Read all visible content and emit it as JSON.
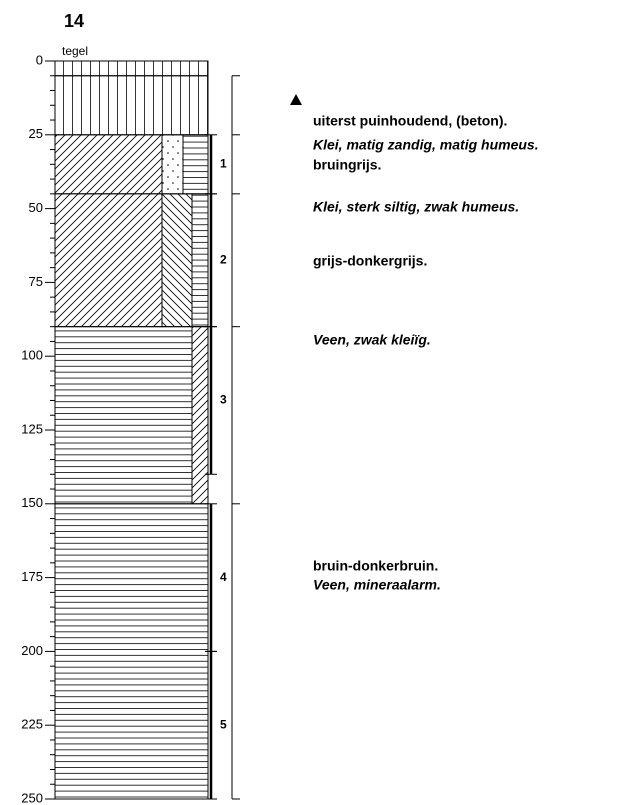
{
  "title": "14",
  "surface_label": "tegel",
  "depth_axis": {
    "ylim": [
      0,
      250
    ],
    "yticks": [
      0,
      25,
      50,
      75,
      100,
      125,
      150,
      175,
      200,
      225,
      250
    ]
  },
  "layers": [
    {
      "top": 0,
      "bottom": 5,
      "patterns": [
        "vertical"
      ]
    },
    {
      "top": 5,
      "bottom": 25,
      "patterns": [
        "vertical"
      ]
    },
    {
      "top": 25,
      "bottom": 45,
      "patterns": [
        "diag",
        "dots",
        "horizontal"
      ]
    },
    {
      "top": 45,
      "bottom": 90,
      "patterns": [
        "diag",
        "backdiag",
        "horizontal"
      ]
    },
    {
      "top": 90,
      "bottom": 150,
      "patterns": [
        "horizontal",
        "diag"
      ]
    },
    {
      "top": 150,
      "bottom": 250,
      "patterns": [
        "horizontal"
      ]
    }
  ],
  "samples": [
    {
      "label": "1",
      "top": 25,
      "bottom": 45
    },
    {
      "label": "2",
      "top": 45,
      "bottom": 90
    },
    {
      "label": "3",
      "top": 90,
      "bottom": 140
    },
    {
      "label": "4",
      "top": 150,
      "bottom": 200
    },
    {
      "label": "5",
      "top": 200,
      "bottom": 250
    }
  ],
  "description_boundaries": [
    5,
    25,
    45,
    90,
    150,
    250
  ],
  "descriptions": [
    {
      "text": "uiterst puinhoudend, (beton).",
      "italic": false
    },
    {
      "text": "Klei, matig zandig, matig humeus.",
      "italic": true
    },
    {
      "text": "bruingrijs.",
      "italic": false
    },
    {
      "text": "Klei, sterk siltig, zwak humeus.",
      "italic": true
    },
    {
      "text": "grijs-donkergrijs.",
      "italic": false
    },
    {
      "text": "Veen, zwak kleiïg.",
      "italic": true
    },
    {
      "text": "bruin-donkerbruin.",
      "italic": false
    },
    {
      "text": "Veen, mineraalarm.",
      "italic": true
    }
  ]
}
